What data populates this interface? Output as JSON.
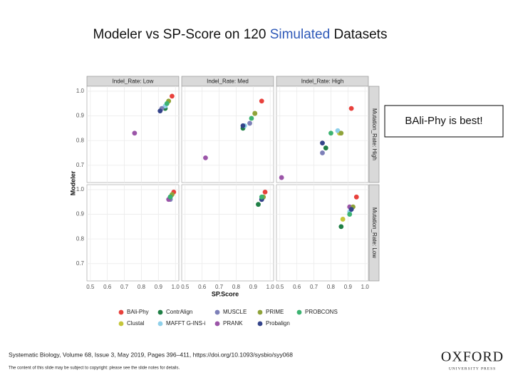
{
  "slide": {
    "title": [
      "Modeler vs SP-Score on 120 ",
      "Simulated",
      " Datasets"
    ],
    "callout": "BAli-Phy is best!",
    "citation": "Systematic Biology, Volume 68, Issue 3, May 2019, Pages 396–411, https://doi.org/10.1093/sysbio/syy068",
    "footer": "The content of this slide may be subject to copyright: please see the slide notes for details.",
    "logo": "OXFORD",
    "logo_sub": "UNIVERSITY PRESS"
  },
  "chart_data": {
    "type": "scatter",
    "x_label": "SP.Score",
    "y_label": "Modeler",
    "columns": [
      "Indel_Rate: Low",
      "Indel_Rate: Med",
      "Indel_Rate: High"
    ],
    "rows": [
      "Mutation_Rate: High",
      "Mutation_Rate: Low"
    ],
    "xlim": [
      0.48,
      1.02
    ],
    "ylim": [
      0.63,
      1.02
    ],
    "xticks": [
      0.5,
      0.6,
      0.7,
      0.8,
      0.9,
      {
        "value": 1,
        "label": "1.0"
      }
    ],
    "yticks": [
      0.7,
      0.8,
      0.9,
      {
        "value": 1,
        "label": "1.0"
      }
    ],
    "grid": true,
    "series": [
      {
        "name": "BAli-Phy",
        "color": "#e8413c",
        "x": [
          0.98,
          0.95,
          0.92,
          0.99,
          0.97,
          0.95
        ],
        "values": [
          0.98,
          0.96,
          0.93,
          0.99,
          0.99,
          0.97
        ]
      },
      {
        "name": "Clustal",
        "color": "#c5c63a",
        "x": [
          0.96,
          0.91,
          0.85,
          0.98,
          0.96,
          0.87
        ],
        "values": [
          0.96,
          0.91,
          0.83,
          0.98,
          0.97,
          0.88
        ]
      },
      {
        "name": "ContrAlign",
        "color": "#1f7f45",
        "x": [
          0.94,
          0.84,
          0.77,
          0.97,
          0.93,
          0.86
        ],
        "values": [
          0.93,
          0.85,
          0.77,
          0.97,
          0.94,
          0.85
        ]
      },
      {
        "name": "MAFFT G-INS-i",
        "color": "#8fd0ea",
        "x": [
          0.94,
          0.85,
          0.84,
          0.97,
          0.95,
          0.91
        ],
        "values": [
          0.94,
          0.86,
          0.84,
          0.97,
          0.96,
          0.91
        ]
      },
      {
        "name": "MUSCLE",
        "color": "#7d80b8",
        "x": [
          0.92,
          0.88,
          0.75,
          0.97,
          0.95,
          0.92
        ],
        "values": [
          0.93,
          0.87,
          0.75,
          0.96,
          0.96,
          0.92
        ]
      },
      {
        "name": "PRANK",
        "color": "#9b55a8",
        "x": [
          0.76,
          0.62,
          0.51,
          0.96,
          0.95,
          0.91
        ],
        "values": [
          0.83,
          0.73,
          0.65,
          0.96,
          0.96,
          0.93
        ]
      },
      {
        "name": "PRIME",
        "color": "#8fa33a",
        "x": [
          0.96,
          0.91,
          0.86,
          0.98,
          0.96,
          0.93
        ],
        "values": [
          0.96,
          0.91,
          0.83,
          0.98,
          0.97,
          0.93
        ]
      },
      {
        "name": "Probalign",
        "color": "#34448a",
        "x": [
          0.91,
          0.84,
          0.75,
          0.97,
          0.95,
          0.92
        ],
        "values": [
          0.92,
          0.86,
          0.79,
          0.97,
          0.96,
          0.92
        ]
      },
      {
        "name": "PROBCONS",
        "color": "#3cb371",
        "x": [
          0.95,
          0.89,
          0.8,
          0.97,
          0.95,
          0.91
        ],
        "values": [
          0.95,
          0.89,
          0.83,
          0.97,
          0.97,
          0.9
        ]
      }
    ]
  }
}
